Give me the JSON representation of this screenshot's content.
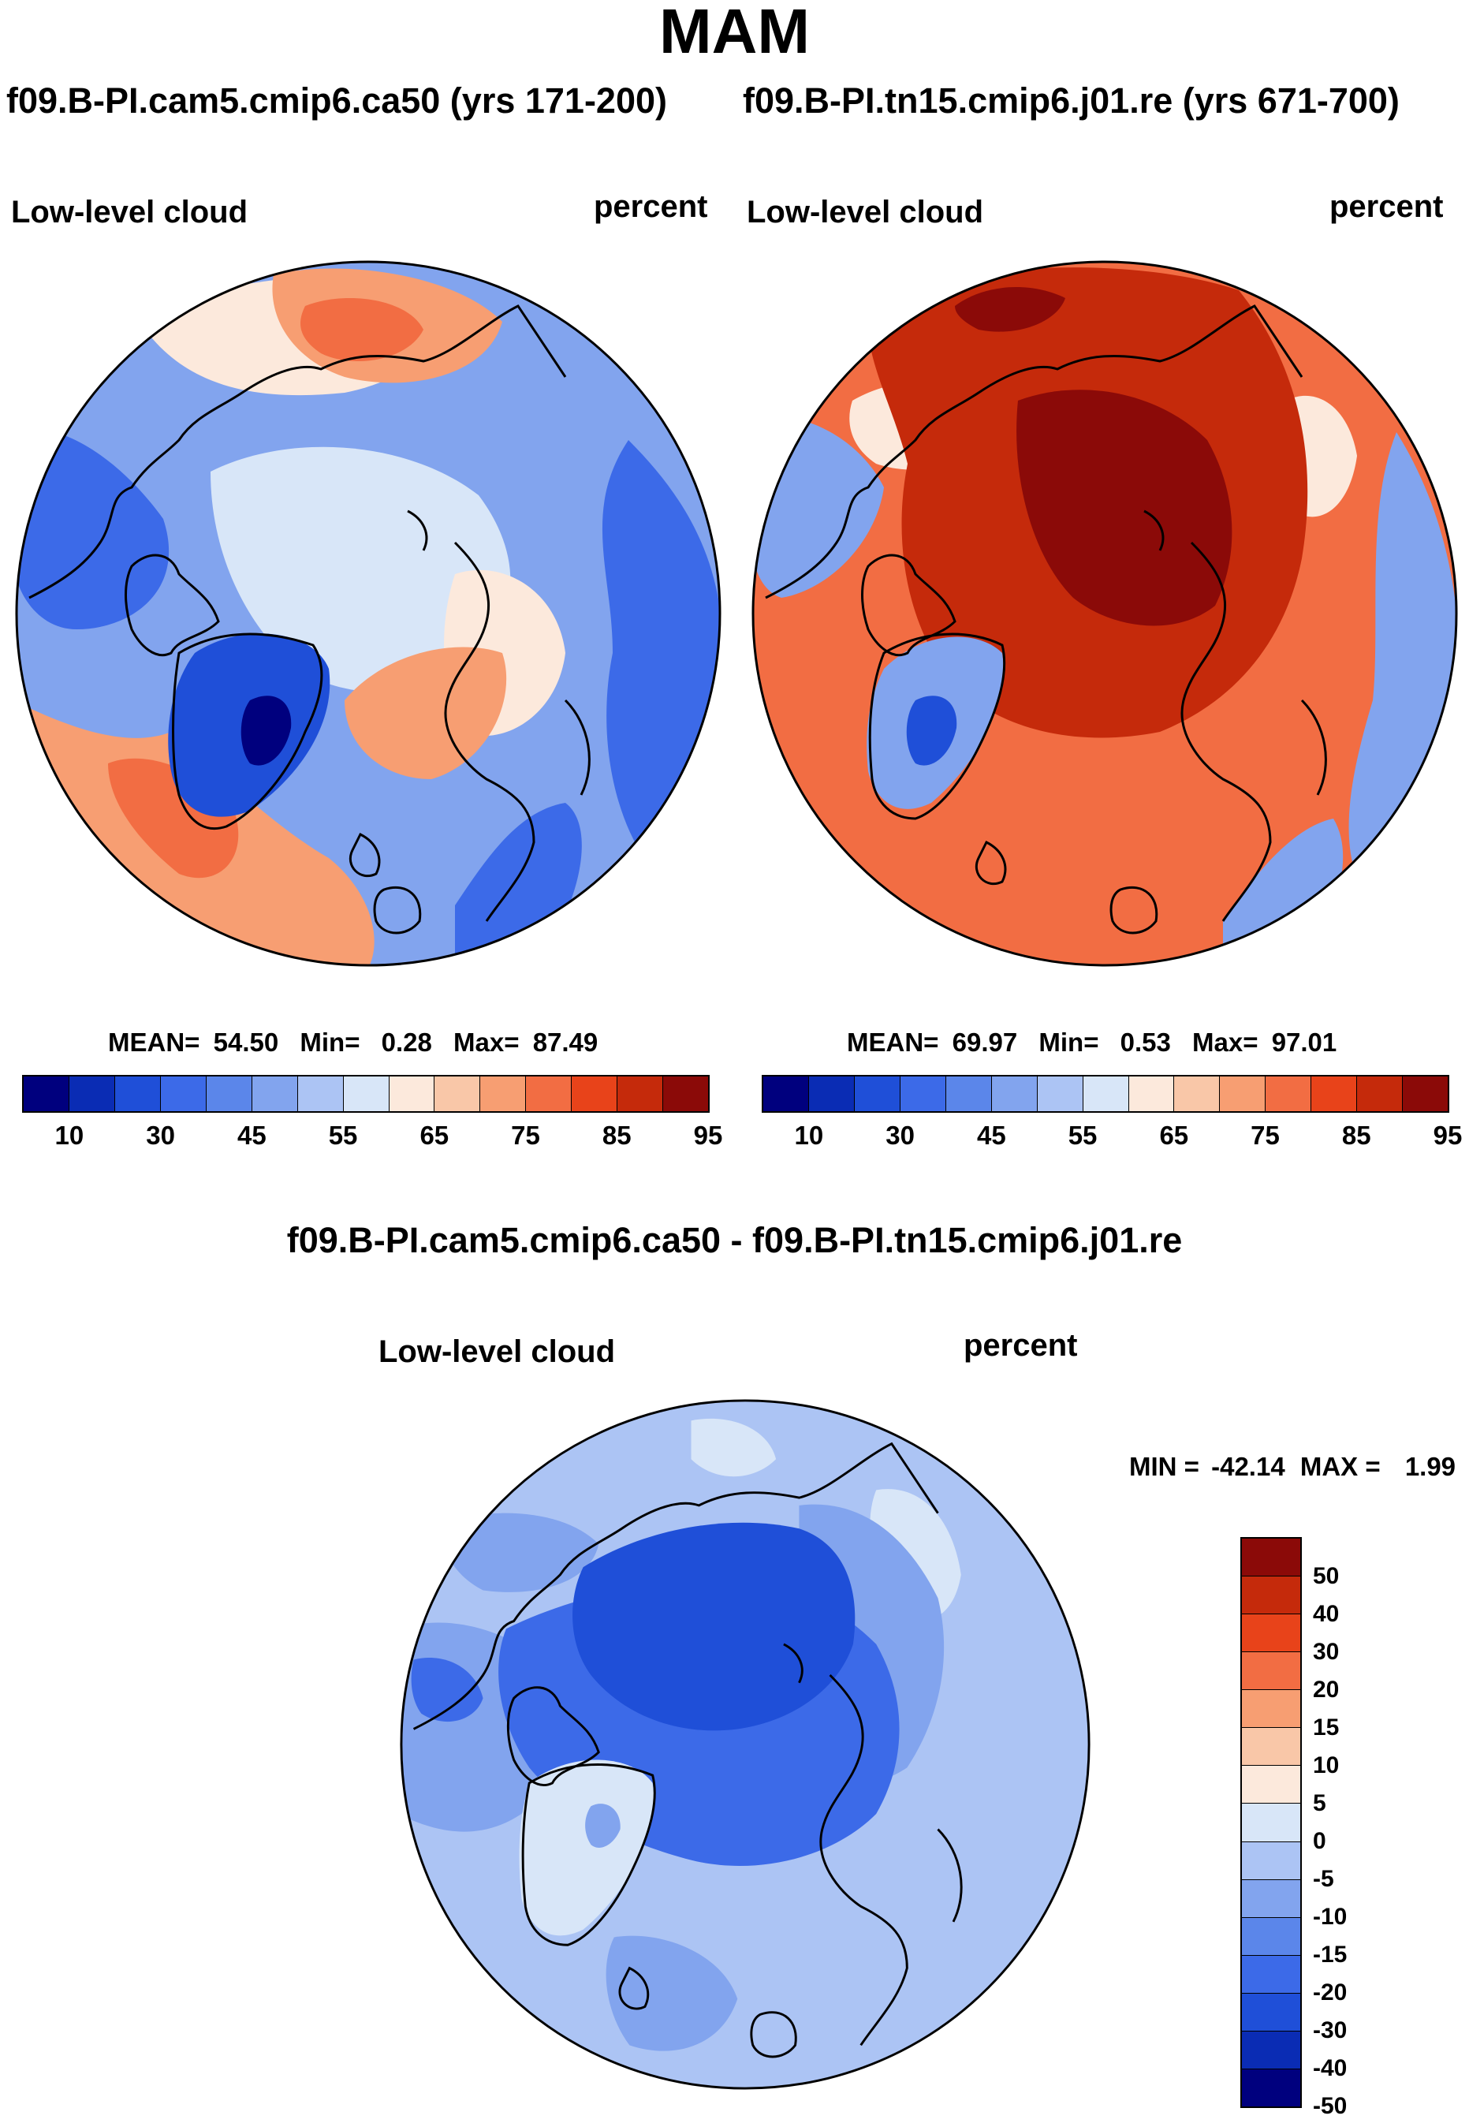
{
  "title": "MAM",
  "case_left": "f09.B-PI.cam5.cmip6.ca50 (yrs 171-200)",
  "case_right": "f09.B-PI.tn15.cmip6.j01.re (yrs 671-700)",
  "diff_title": "f09.B-PI.cam5.cmip6.ca50 - f09.B-PI.tn15.cmip6.j01.re",
  "panels": {
    "left": {
      "variable": "Low-level cloud",
      "units": "percent",
      "mean_label": "MEAN=",
      "mean": "54.50",
      "min_label": "Min=",
      "min": "0.28",
      "max_label": "Max=",
      "max": "87.49"
    },
    "right": {
      "variable": "Low-level cloud",
      "units": "percent",
      "mean_label": "MEAN=",
      "mean": "69.97",
      "min_label": "Min=",
      "min": "0.53",
      "max_label": "Max=",
      "max": "97.01"
    },
    "diff": {
      "variable": "Low-level cloud",
      "units": "percent",
      "min_label": "MIN =",
      "min": "-42.14",
      "max_label": "MAX =",
      "max": "1.99"
    }
  },
  "colorbar_abs": {
    "colors": [
      "#00007e",
      "#0a2cb4",
      "#1f4fd8",
      "#3c6ae8",
      "#5b86ea",
      "#82a4ee",
      "#acc4f4",
      "#d8e6f8",
      "#fce9dc",
      "#f9c7a8",
      "#f79e72",
      "#f26d43",
      "#e8431a",
      "#c52a0b",
      "#8b0a08"
    ],
    "ticks": [
      "10",
      "30",
      "45",
      "55",
      "65",
      "75",
      "85",
      "95"
    ]
  },
  "colorbar_diff": {
    "colors": [
      "#8b0a08",
      "#c52a0b",
      "#e8431a",
      "#f26d43",
      "#f79e72",
      "#f9c7a8",
      "#fce9dc",
      "#d8e6f8",
      "#acc4f4",
      "#82a4ee",
      "#5b86ea",
      "#3c6ae8",
      "#1f4fd8",
      "#0a2cb4",
      "#00007e"
    ],
    "ticks": [
      "50",
      "40",
      "30",
      "20",
      "15",
      "10",
      "5",
      "0",
      "-5",
      "-10",
      "-15",
      "-20",
      "-30",
      "-40",
      "-50"
    ]
  },
  "map_colors": {
    "left": {
      "base": "#82a4ee",
      "deep": "#3c6ae8",
      "ocean_pole": "#d8e6f8",
      "warm": "#f79e72",
      "hot": "#f26d43",
      "light": "#fce9dc",
      "greenland": "#1f4fd8",
      "greenland_core": "#00007e"
    },
    "right": {
      "base": "#f26d43",
      "deep": "#c52a0b",
      "core": "#8b0a08",
      "cool": "#82a4ee",
      "light": "#fce9dc",
      "greenland": "#82a4ee",
      "greenland_core": "#1f4fd8"
    },
    "diff": {
      "base": "#acc4f4",
      "mid": "#82a4ee",
      "strong": "#3c6ae8",
      "core": "#1f4fd8",
      "greenland": "#d8e6f8",
      "pale": "#d8e6f8"
    }
  }
}
